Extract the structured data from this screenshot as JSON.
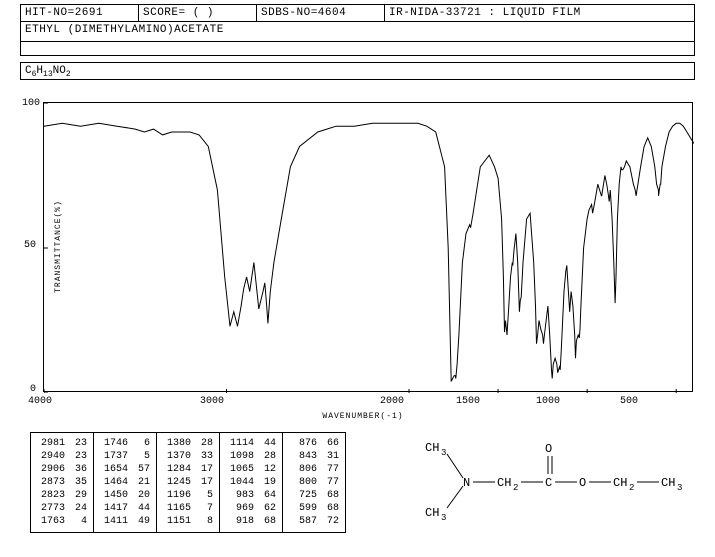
{
  "header": {
    "hit_no": "HIT-NO=2691",
    "score": "SCORE=  (  )",
    "sdbs_no": "SDBS-NO=4604",
    "method": "IR-NIDA-33721 : LIQUID FILM"
  },
  "compound_name": "ETHYL (DIMETHYLAMINO)ACETATE",
  "formula_parts": {
    "p1": "C",
    "s1": "6",
    "p2": "H",
    "s2": "13",
    "p3": "NO",
    "s3": "2"
  },
  "chart": {
    "type": "line",
    "xlabel": "WAVENUMBER(-1)",
    "ylabel": "TRANSMITTANCE(%)",
    "xlim": [
      4000,
      400
    ],
    "ylim": [
      0,
      100
    ],
    "yticks": [
      0,
      50,
      100
    ],
    "xticks": [
      4000,
      3000,
      2000,
      1500,
      1000,
      500
    ],
    "line_color": "#000000",
    "background_color": "#ffffff",
    "border": "1px solid #000",
    "spectrum": [
      [
        4000,
        92
      ],
      [
        3900,
        93
      ],
      [
        3800,
        92
      ],
      [
        3700,
        93
      ],
      [
        3600,
        92
      ],
      [
        3500,
        91
      ],
      [
        3450,
        90
      ],
      [
        3400,
        91
      ],
      [
        3350,
        89
      ],
      [
        3300,
        90
      ],
      [
        3250,
        90
      ],
      [
        3200,
        90
      ],
      [
        3150,
        89
      ],
      [
        3100,
        85
      ],
      [
        3050,
        70
      ],
      [
        3010,
        40
      ],
      [
        2981,
        23
      ],
      [
        2960,
        28
      ],
      [
        2940,
        23
      ],
      [
        2920,
        30
      ],
      [
        2906,
        36
      ],
      [
        2890,
        40
      ],
      [
        2873,
        35
      ],
      [
        2850,
        45
      ],
      [
        2823,
        29
      ],
      [
        2800,
        35
      ],
      [
        2790,
        38
      ],
      [
        2780,
        30
      ],
      [
        2773,
        24
      ],
      [
        2760,
        35
      ],
      [
        2740,
        45
      ],
      [
        2700,
        60
      ],
      [
        2650,
        78
      ],
      [
        2600,
        85
      ],
      [
        2500,
        90
      ],
      [
        2400,
        92
      ],
      [
        2300,
        92
      ],
      [
        2200,
        93
      ],
      [
        2100,
        93
      ],
      [
        2050,
        93
      ],
      [
        2000,
        93
      ],
      [
        1950,
        93
      ],
      [
        1900,
        92
      ],
      [
        1850,
        90
      ],
      [
        1800,
        78
      ],
      [
        1780,
        50
      ],
      [
        1763,
        4
      ],
      [
        1755,
        5
      ],
      [
        1746,
        6
      ],
      [
        1740,
        6
      ],
      [
        1737,
        5
      ],
      [
        1730,
        10
      ],
      [
        1720,
        20
      ],
      [
        1700,
        45
      ],
      [
        1680,
        55
      ],
      [
        1660,
        58
      ],
      [
        1654,
        57
      ],
      [
        1640,
        62
      ],
      [
        1600,
        78
      ],
      [
        1550,
        82
      ],
      [
        1520,
        78
      ],
      [
        1500,
        74
      ],
      [
        1480,
        60
      ],
      [
        1470,
        40
      ],
      [
        1464,
        21
      ],
      [
        1458,
        25
      ],
      [
        1450,
        20
      ],
      [
        1440,
        30
      ],
      [
        1430,
        40
      ],
      [
        1420,
        45
      ],
      [
        1417,
        44
      ],
      [
        1411,
        49
      ],
      [
        1400,
        55
      ],
      [
        1390,
        45
      ],
      [
        1380,
        28
      ],
      [
        1375,
        32
      ],
      [
        1370,
        33
      ],
      [
        1360,
        45
      ],
      [
        1340,
        60
      ],
      [
        1320,
        62
      ],
      [
        1300,
        45
      ],
      [
        1290,
        30
      ],
      [
        1284,
        17
      ],
      [
        1278,
        20
      ],
      [
        1270,
        25
      ],
      [
        1260,
        22
      ],
      [
        1250,
        20
      ],
      [
        1245,
        17
      ],
      [
        1240,
        20
      ],
      [
        1220,
        30
      ],
      [
        1210,
        20
      ],
      [
        1200,
        8
      ],
      [
        1196,
        5
      ],
      [
        1190,
        10
      ],
      [
        1180,
        12
      ],
      [
        1170,
        10
      ],
      [
        1165,
        7
      ],
      [
        1160,
        8
      ],
      [
        1155,
        9
      ],
      [
        1151,
        8
      ],
      [
        1145,
        15
      ],
      [
        1130,
        35
      ],
      [
        1120,
        42
      ],
      [
        1114,
        44
      ],
      [
        1105,
        35
      ],
      [
        1098,
        28
      ],
      [
        1090,
        35
      ],
      [
        1080,
        30
      ],
      [
        1070,
        20
      ],
      [
        1065,
        12
      ],
      [
        1060,
        18
      ],
      [
        1050,
        20
      ],
      [
        1044,
        19
      ],
      [
        1040,
        22
      ],
      [
        1035,
        30
      ],
      [
        1020,
        50
      ],
      [
        1000,
        60
      ],
      [
        990,
        63
      ],
      [
        983,
        64
      ],
      [
        975,
        65
      ],
      [
        969,
        62
      ],
      [
        960,
        65
      ],
      [
        940,
        72
      ],
      [
        920,
        68
      ],
      [
        918,
        68
      ],
      [
        900,
        75
      ],
      [
        890,
        72
      ],
      [
        880,
        68
      ],
      [
        876,
        66
      ],
      [
        870,
        70
      ],
      [
        860,
        60
      ],
      [
        850,
        45
      ],
      [
        843,
        31
      ],
      [
        838,
        40
      ],
      [
        830,
        60
      ],
      [
        820,
        72
      ],
      [
        810,
        78
      ],
      [
        806,
        77
      ],
      [
        800,
        77
      ],
      [
        790,
        78
      ],
      [
        780,
        80
      ],
      [
        760,
        78
      ],
      [
        740,
        72
      ],
      [
        730,
        70
      ],
      [
        725,
        68
      ],
      [
        720,
        70
      ],
      [
        700,
        78
      ],
      [
        680,
        85
      ],
      [
        660,
        88
      ],
      [
        640,
        85
      ],
      [
        620,
        78
      ],
      [
        610,
        72
      ],
      [
        600,
        70
      ],
      [
        599,
        68
      ],
      [
        595,
        70
      ],
      [
        590,
        72
      ],
      [
        587,
        72
      ],
      [
        580,
        78
      ],
      [
        560,
        85
      ],
      [
        540,
        90
      ],
      [
        520,
        92
      ],
      [
        500,
        93
      ],
      [
        480,
        93
      ],
      [
        460,
        92
      ],
      [
        440,
        90
      ],
      [
        420,
        88
      ],
      [
        400,
        86
      ]
    ]
  },
  "peak_table": {
    "columns": [
      [
        [
          2981,
          23
        ],
        [
          2940,
          23
        ],
        [
          2906,
          36
        ],
        [
          2873,
          35
        ],
        [
          2823,
          29
        ],
        [
          2773,
          24
        ],
        [
          1763,
          4
        ]
      ],
      [
        [
          1746,
          6
        ],
        [
          1737,
          5
        ],
        [
          1654,
          57
        ],
        [
          1464,
          21
        ],
        [
          1450,
          20
        ],
        [
          1417,
          44
        ],
        [
          1411,
          49
        ]
      ],
      [
        [
          1380,
          28
        ],
        [
          1370,
          33
        ],
        [
          1284,
          17
        ],
        [
          1245,
          17
        ],
        [
          1196,
          5
        ],
        [
          1165,
          7
        ],
        [
          1151,
          8
        ]
      ],
      [
        [
          1114,
          44
        ],
        [
          1098,
          28
        ],
        [
          1065,
          12
        ],
        [
          1044,
          19
        ],
        [
          983,
          64
        ],
        [
          969,
          62
        ],
        [
          918,
          68
        ]
      ],
      [
        [
          876,
          66
        ],
        [
          843,
          31
        ],
        [
          806,
          77
        ],
        [
          800,
          77
        ],
        [
          725,
          68
        ],
        [
          599,
          68
        ],
        [
          587,
          72
        ]
      ]
    ]
  },
  "structure": {
    "labels": {
      "ch3_top": "CH",
      "ch3_bot": "CH",
      "n": "N",
      "ch2a": "CH",
      "c": "C",
      "o_dbl": "O",
      "o_sgl": "O",
      "ch2b": "CH",
      "ch3_end": "CH",
      "sub3": "3",
      "sub2": "2"
    }
  }
}
